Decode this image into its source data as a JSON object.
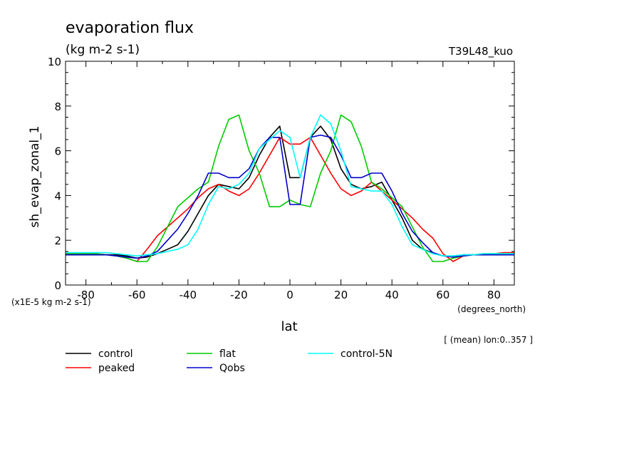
{
  "chart_data": {
    "type": "line",
    "title": "evaporation flux",
    "subtitle": "(kg m-2 s-1)",
    "run_label": "T39L48_kuo",
    "ylabel": "sh_evap_zonal_1",
    "xlabel": "lat",
    "x_units": "(degrees_north)",
    "y_scale_note": "(x1E-5 kg m-2 s-1)",
    "mean_note": "[ (mean) lon:0..357 ]",
    "xlim": [
      -88,
      88
    ],
    "ylim": [
      0,
      10
    ],
    "x_ticks": [
      -80,
      -60,
      -40,
      -20,
      0,
      20,
      40,
      60,
      80
    ],
    "x_tick_labels": [
      "-80",
      "-60",
      "-40",
      "-20",
      "0",
      "20",
      "40",
      "60",
      "80"
    ],
    "y_ticks": [
      0,
      2,
      4,
      6,
      8,
      10
    ],
    "y_tick_labels": [
      "0",
      "2",
      "4",
      "6",
      "8",
      "10"
    ],
    "x": [
      -88,
      -84,
      -80,
      -76,
      -72,
      -68,
      -64,
      -60,
      -56,
      -52,
      -48,
      -44,
      -40,
      -36,
      -32,
      -28,
      -24,
      -20,
      -16,
      -12,
      -8,
      -4,
      0,
      4,
      8,
      12,
      16,
      20,
      24,
      28,
      32,
      36,
      40,
      44,
      48,
      52,
      56,
      60,
      64,
      68,
      72,
      76,
      80,
      84,
      88
    ],
    "series": [
      {
        "name": "control",
        "color": "#000000",
        "values": [
          1.35,
          1.35,
          1.35,
          1.35,
          1.35,
          1.35,
          1.3,
          1.2,
          1.25,
          1.4,
          1.6,
          1.8,
          2.4,
          3.2,
          4.0,
          4.5,
          4.4,
          4.3,
          4.8,
          5.8,
          6.6,
          7.1,
          4.8,
          4.8,
          6.6,
          7.1,
          6.5,
          5.2,
          4.5,
          4.3,
          4.4,
          4.6,
          3.8,
          3.0,
          2.0,
          1.6,
          1.45,
          1.3,
          1.3,
          1.35,
          1.35,
          1.35,
          1.35,
          1.35,
          1.35
        ]
      },
      {
        "name": "peaked",
        "color": "#ff0000",
        "values": [
          1.4,
          1.4,
          1.4,
          1.4,
          1.35,
          1.3,
          1.2,
          1.05,
          1.6,
          2.2,
          2.6,
          3.0,
          3.4,
          3.9,
          4.3,
          4.5,
          4.2,
          4.0,
          4.3,
          5.0,
          5.8,
          6.6,
          6.3,
          6.3,
          6.6,
          5.8,
          5.0,
          4.3,
          4.0,
          4.2,
          4.6,
          4.2,
          3.8,
          3.4,
          3.0,
          2.5,
          2.1,
          1.4,
          1.05,
          1.3,
          1.35,
          1.4,
          1.4,
          1.45,
          1.45
        ]
      },
      {
        "name": "flat",
        "color": "#00cc00",
        "values": [
          1.4,
          1.4,
          1.4,
          1.4,
          1.35,
          1.3,
          1.2,
          1.05,
          1.05,
          1.7,
          2.6,
          3.5,
          3.9,
          4.3,
          4.6,
          6.2,
          7.4,
          7.6,
          6.0,
          5.0,
          3.5,
          3.5,
          3.8,
          3.6,
          3.5,
          5.0,
          6.0,
          7.6,
          7.3,
          6.2,
          4.6,
          4.3,
          3.9,
          3.5,
          2.6,
          1.7,
          1.05,
          1.05,
          1.2,
          1.3,
          1.35,
          1.4,
          1.4,
          1.4,
          1.4
        ]
      },
      {
        "name": "Qobs",
        "color": "#0000cc",
        "values": [
          1.35,
          1.35,
          1.35,
          1.35,
          1.35,
          1.3,
          1.25,
          1.2,
          1.3,
          1.5,
          2.0,
          2.5,
          3.2,
          4.0,
          5.0,
          5.0,
          4.8,
          4.8,
          5.2,
          6.1,
          6.6,
          6.6,
          3.6,
          3.6,
          6.6,
          6.7,
          6.6,
          5.8,
          4.8,
          4.8,
          5.0,
          5.0,
          4.2,
          3.2,
          2.4,
          1.9,
          1.45,
          1.3,
          1.25,
          1.3,
          1.35,
          1.35,
          1.35,
          1.35,
          1.35
        ]
      },
      {
        "name": "control-5N",
        "color": "#00ffff",
        "values": [
          1.45,
          1.45,
          1.45,
          1.45,
          1.45,
          1.4,
          1.35,
          1.3,
          1.35,
          1.4,
          1.5,
          1.6,
          1.8,
          2.5,
          3.6,
          4.4,
          4.3,
          4.5,
          5.0,
          6.1,
          6.5,
          6.9,
          6.6,
          4.8,
          6.6,
          7.6,
          7.2,
          6.0,
          4.4,
          4.3,
          4.2,
          4.2,
          3.6,
          2.6,
          1.8,
          1.6,
          1.4,
          1.3,
          1.3,
          1.35,
          1.35,
          1.4,
          1.4,
          1.4,
          1.4
        ]
      }
    ],
    "legend_placement": "bottom-left, below plot"
  }
}
